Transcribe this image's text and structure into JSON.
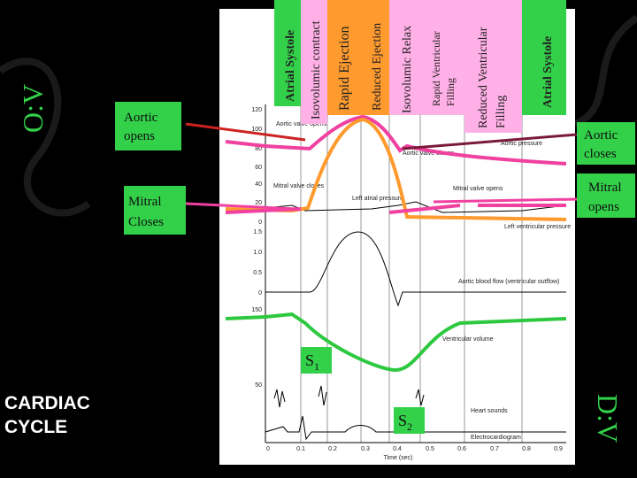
{
  "title": [
    "CARDIAC",
    "CYCLE"
  ],
  "side_marks": [
    "O:V",
    "D:V"
  ],
  "phases": [
    {
      "lines": [
        "Atrial Systole"
      ]
    },
    {
      "lines": [
        "Isovolumic contract"
      ]
    },
    {
      "lines": [
        "Rapid Ejection"
      ]
    },
    {
      "lines": [
        "Reduced Ejection"
      ]
    },
    {
      "lines": [
        "Isovolumic Relax"
      ]
    },
    {
      "lines": [
        "Rapid Ventricular",
        "Filling"
      ]
    },
    {
      "lines": [
        "Reduced Ventricular",
        "Filling"
      ]
    },
    {
      "lines": [
        "Atrial Systole"
      ]
    }
  ],
  "notes": {
    "aortic_opens": [
      "Aortic",
      "opens"
    ],
    "mitral_closes": [
      "Mitral",
      "Closes"
    ],
    "aortic_closes": [
      "Aortic",
      "closes"
    ],
    "mitral_opens": [
      "Mitral",
      "opens"
    ]
  },
  "sounds": {
    "s1": {
      "letter": "S",
      "sub": "1"
    },
    "s2": {
      "letter": "S",
      "sub": "2"
    }
  },
  "graph": {
    "pressure_ticks": [
      "120",
      "100",
      "80",
      "60",
      "40",
      "20",
      "0"
    ],
    "flow_ticks": [
      "1.5",
      "1.0",
      "0.5",
      "0"
    ],
    "volume_ticks": [
      "150",
      "50"
    ],
    "time_ticks": [
      "0",
      "0.1",
      "0.2",
      "0.3",
      "0.4",
      "0.5",
      "0.6",
      "0.7",
      "0.8",
      "0.9"
    ],
    "time_label": "Time (sec)",
    "annotations": [
      "Aortic valve opens",
      "Aortic valve closes",
      "Aortic pressure",
      "Mitral valve closes",
      "Left atrial pressure",
      "Mitral valve opens",
      "Left ventricular pressure",
      "Aortic blood flow (ventricular outflow)",
      "Ventricular volume",
      "Heart sounds",
      "Electrocardiogram"
    ]
  }
}
